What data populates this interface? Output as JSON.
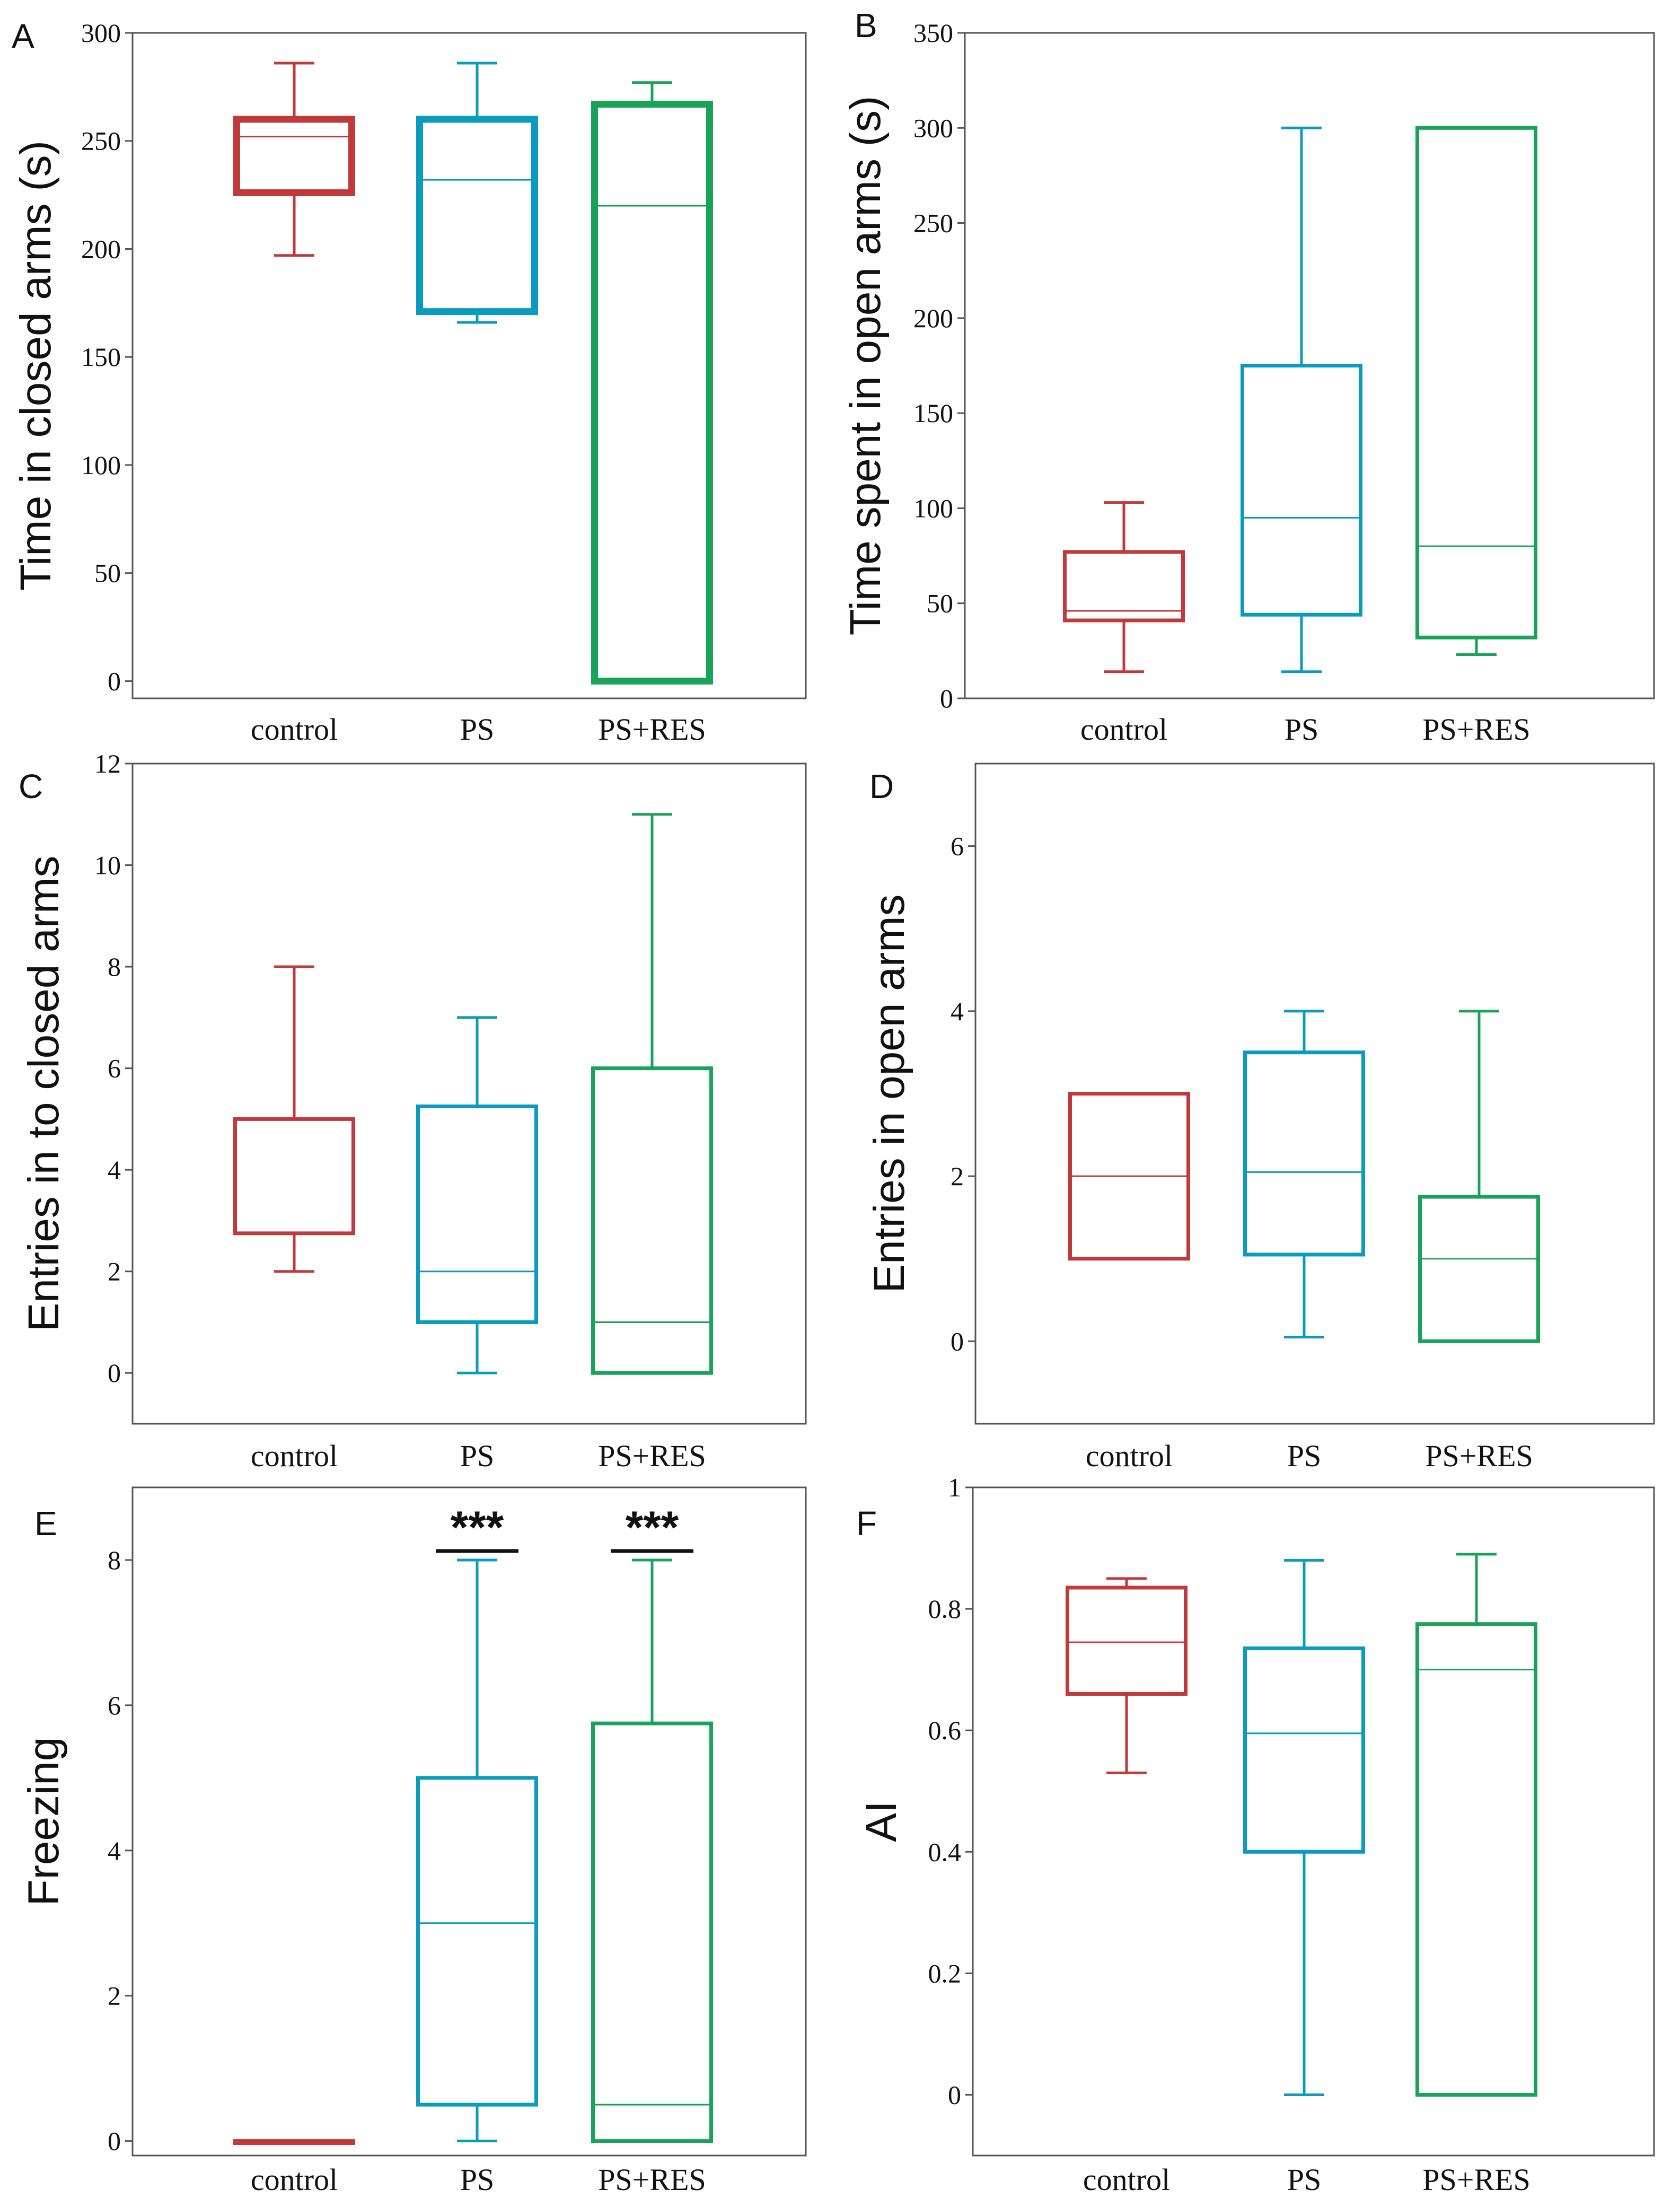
{
  "colors": {
    "control": "#c0393b",
    "PS": "#0a9bbd",
    "PS+RES": "#19a35a"
  },
  "chart_data": [
    {
      "panel": "A",
      "type": "box",
      "title": "",
      "ylabel": "Time in closed arms (s)",
      "ylim": [
        -8,
        300
      ],
      "yticks": [
        0,
        50,
        100,
        150,
        200,
        250,
        300
      ],
      "categories": [
        "control",
        "PS",
        "PS+RES"
      ],
      "boxes": [
        {
          "group": "control",
          "min": 197,
          "q1": 226,
          "median": 252,
          "q3": 260,
          "max": 286,
          "thick": true
        },
        {
          "group": "PS",
          "min": 166,
          "q1": 171,
          "median": 232,
          "q3": 260,
          "max": 286,
          "thick": true
        },
        {
          "group": "PS+RES",
          "min": 0,
          "q1": 0,
          "median": 220,
          "q3": 267,
          "max": 277,
          "thick": true
        }
      ],
      "annotations": []
    },
    {
      "panel": "B",
      "type": "box",
      "title": "",
      "ylabel": "Time spent in open arms (s)",
      "ylim": [
        0,
        350
      ],
      "yticks": [
        0,
        50,
        100,
        150,
        200,
        250,
        300,
        350
      ],
      "categories": [
        "control",
        "PS",
        "PS+RES"
      ],
      "boxes": [
        {
          "group": "control",
          "min": 14,
          "q1": 41,
          "median": 46,
          "q3": 77,
          "max": 103,
          "thick": false
        },
        {
          "group": "PS",
          "min": 14,
          "q1": 44,
          "median": 95,
          "q3": 175,
          "max": 300,
          "thick": false
        },
        {
          "group": "PS+RES",
          "min": 23,
          "q1": 32,
          "median": 80,
          "q3": 300,
          "max": 300,
          "thick": false
        }
      ],
      "annotations": []
    },
    {
      "panel": "C",
      "type": "box",
      "title": "",
      "ylabel": "Entries in to closed arms",
      "ylim": [
        -1,
        12
      ],
      "yticks": [
        0,
        2,
        4,
        6,
        8,
        10,
        12
      ],
      "categories": [
        "control",
        "PS",
        "PS+RES"
      ],
      "boxes": [
        {
          "group": "control",
          "min": 2,
          "q1": 2.75,
          "median": 5,
          "q3": 5,
          "max": 8,
          "thick": false
        },
        {
          "group": "PS",
          "min": 0,
          "q1": 1,
          "median": 2,
          "q3": 5.25,
          "max": 7,
          "thick": false
        },
        {
          "group": "PS+RES",
          "min": 0,
          "q1": 0,
          "median": 1,
          "q3": 6,
          "max": 11,
          "thick": false
        }
      ],
      "annotations": []
    },
    {
      "panel": "D",
      "type": "box",
      "title": "",
      "ylabel": "Entries in open arms",
      "ylim": [
        -1,
        7
      ],
      "yticks": [
        0,
        2,
        4,
        6
      ],
      "categories": [
        "control",
        "PS",
        "PS+RES"
      ],
      "boxes": [
        {
          "group": "control",
          "min": 1,
          "q1": 1,
          "median": 2,
          "q3": 3,
          "max": 3,
          "thick": false
        },
        {
          "group": "PS",
          "min": 0.05,
          "q1": 1.05,
          "median": 2.05,
          "q3": 3.5,
          "max": 4,
          "thick": false
        },
        {
          "group": "PS+RES",
          "min": 0,
          "q1": 0,
          "median": 1,
          "q3": 1.75,
          "max": 4,
          "thick": false
        }
      ],
      "annotations": []
    },
    {
      "panel": "E",
      "type": "box",
      "title": "",
      "ylabel": "Freezing",
      "ylim": [
        -0.2,
        9
      ],
      "yticks": [
        0,
        2,
        4,
        6,
        8
      ],
      "categories": [
        "control",
        "PS",
        "PS+RES"
      ],
      "boxes": [
        {
          "group": "control",
          "min": 0,
          "q1": 0,
          "median": 0,
          "q3": 0,
          "max": 0,
          "thick": false
        },
        {
          "group": "PS",
          "min": 0,
          "q1": 0.5,
          "median": 3,
          "q3": 5,
          "max": 8,
          "thick": false
        },
        {
          "group": "PS+RES",
          "min": 0,
          "q1": 0,
          "median": 0.5,
          "q3": 5.75,
          "max": 8,
          "thick": false
        }
      ],
      "annotations": [
        {
          "group": "PS",
          "text": "***"
        },
        {
          "group": "PS+RES",
          "text": "***"
        }
      ]
    },
    {
      "panel": "F",
      "type": "box",
      "title": "",
      "ylabel": "AI",
      "ylim": [
        -0.1,
        1.0
      ],
      "yticks": [
        0.0,
        0.2,
        0.4,
        0.6,
        0.8,
        1.0
      ],
      "categories": [
        "control",
        "PS",
        "PS+RES"
      ],
      "boxes": [
        {
          "group": "control",
          "min": 0.53,
          "q1": 0.66,
          "median": 0.745,
          "q3": 0.835,
          "max": 0.85,
          "thick": false
        },
        {
          "group": "PS",
          "min": 0,
          "q1": 0.4,
          "median": 0.595,
          "q3": 0.735,
          "max": 0.88,
          "thick": false
        },
        {
          "group": "PS+RES",
          "min": 0,
          "q1": 0,
          "median": 0.7,
          "q3": 0.775,
          "max": 0.89,
          "thick": false
        }
      ],
      "annotations": []
    }
  ]
}
